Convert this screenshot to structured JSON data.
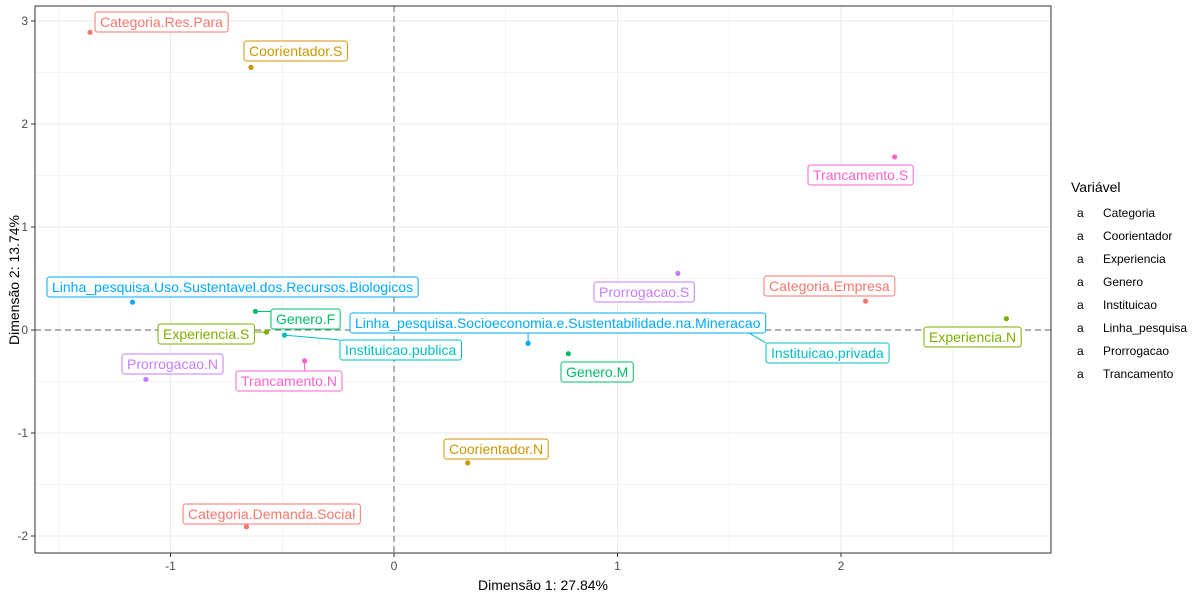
{
  "chart_data": {
    "type": "scatter",
    "title": "",
    "xlabel": "Dimensão 1: 27.84%",
    "ylabel": "Dimensão 2: 13.74%",
    "xlim": [
      -1.55,
      2.9
    ],
    "ylim": [
      -2.05,
      3.1
    ],
    "x_ticks": [
      -1,
      0,
      1,
      2
    ],
    "y_ticks": [
      -2,
      -1,
      0,
      1,
      2,
      3
    ],
    "grid": true,
    "reference_lines": {
      "x": 0,
      "y": 0,
      "style": "dashed"
    },
    "legend": {
      "title": "Variável",
      "position": "right",
      "symbol": "a",
      "entries": [
        {
          "name": "Categoria",
          "color": "#F8766D"
        },
        {
          "name": "Coorientador",
          "color": "#CD9600"
        },
        {
          "name": "Experiencia",
          "color": "#7CAE00"
        },
        {
          "name": "Genero",
          "color": "#00BE67"
        },
        {
          "name": "Instituicao",
          "color": "#00BFC4"
        },
        {
          "name": "Linha_pesquisa",
          "color": "#00A9FF"
        },
        {
          "name": "Prorrogacao",
          "color": "#C77CFF"
        },
        {
          "name": "Trancamento",
          "color": "#FF61CC"
        }
      ]
    },
    "points": [
      {
        "label": "Categoria.Res.Para",
        "group": "Categoria",
        "x": -1.36,
        "y": 2.89
      },
      {
        "label": "Coorientador.S",
        "group": "Coorientador",
        "x": -0.64,
        "y": 2.55
      },
      {
        "label": "Trancamento.S",
        "group": "Trancamento",
        "x": 2.24,
        "y": 1.68
      },
      {
        "label": "Linha_pesquisa.Uso.Sustentavel.dos.Recursos.Biologicos",
        "group": "Linha_pesquisa",
        "x": -1.17,
        "y": 0.27
      },
      {
        "label": "Prorrogacao.S",
        "group": "Prorrogacao",
        "x": 1.27,
        "y": 0.55
      },
      {
        "label": "Categoria.Empresa",
        "group": "Categoria",
        "x": 2.11,
        "y": 0.28
      },
      {
        "label": "Genero.F",
        "group": "Genero",
        "x": -0.62,
        "y": 0.18
      },
      {
        "label": "Experiencia.S",
        "group": "Experiencia",
        "x": -0.57,
        "y": -0.02
      },
      {
        "label": "Instituicao.publica",
        "group": "Instituicao",
        "x": -0.49,
        "y": -0.05
      },
      {
        "label": "Linha_pesquisa.Socioeconomia.e.Sustentabilidade.na.Mineracao",
        "group": "Linha_pesquisa",
        "x": 0.6,
        "y": -0.13
      },
      {
        "label": "Instituicao.privada",
        "group": "Instituicao",
        "x": 1.55,
        "y": 0.02
      },
      {
        "label": "Experiencia.N",
        "group": "Experiencia",
        "x": 2.74,
        "y": 0.11
      },
      {
        "label": "Genero.M",
        "group": "Genero",
        "x": 0.78,
        "y": -0.23
      },
      {
        "label": "Prorrogacao.N",
        "group": "Prorrogacao",
        "x": -1.11,
        "y": -0.48
      },
      {
        "label": "Trancamento.N",
        "group": "Trancamento",
        "x": -0.4,
        "y": -0.3
      },
      {
        "label": "Coorientador.N",
        "group": "Coorientador",
        "x": 0.33,
        "y": -1.29
      },
      {
        "label": "Categoria.Demanda.Social",
        "group": "Categoria",
        "x": -0.66,
        "y": -1.91
      }
    ]
  }
}
